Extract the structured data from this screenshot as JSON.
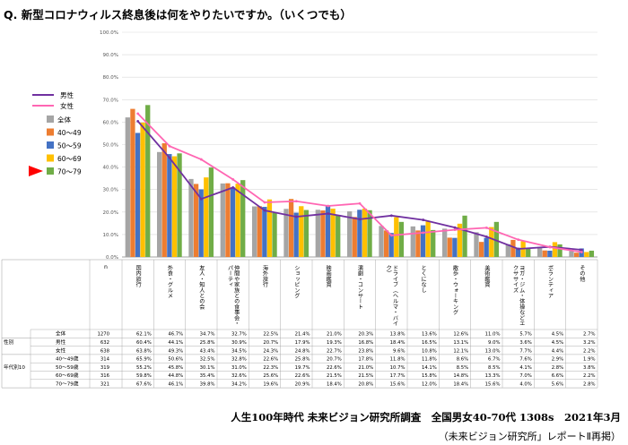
{
  "title": "Q. 新型コロナウィルス終息後は何をやりたいですか。（いくつでも）",
  "footer": {
    "main": "人生100年時代 未来ビジョン研究所調査　全国男女40-70代 1308s　2021年3月",
    "sub": "（未来ビジョン研究所」レポートⅡ再掲）"
  },
  "colors": {
    "all": "#a5a5a5",
    "age40": "#ed7d31",
    "age50": "#4472c4",
    "age60": "#ffc000",
    "age70": "#70ad47",
    "male_line": "#7030a0",
    "female_line": "#ff66b3",
    "arrow": "#ff0000"
  },
  "chart_data": {
    "type": "bar",
    "title": "Q. 新型コロナウィルス終息後は何をやりたいですか。（いくつでも）",
    "ylim": [
      0,
      100
    ],
    "yticks": [
      "0.0%",
      "10.0%",
      "20.0%",
      "30.0%",
      "40.0%",
      "50.0%",
      "60.0%",
      "70.0%",
      "80.0%",
      "90.0%",
      "100.0%"
    ],
    "grid": true,
    "legend_position": "left",
    "categories": [
      "国内旅行",
      "外食・グルメ",
      "友人・知人との会",
      "仲間や家族との食事会・パーティ",
      "海外旅行",
      "ショッピング",
      "映画鑑賞",
      "演劇・コンサート",
      "ドライブ（ヘルマ・バイク）",
      "とくになし",
      "散歩・ウォーキング",
      "美術鑑賞",
      "ヨガ・ジム・体操などエクササイズ",
      "ボランティア",
      "その他"
    ],
    "series": [
      {
        "name": "全体",
        "type": "bar",
        "values": [
          62.1,
          46.7,
          34.7,
          32.7,
          22.5,
          21.4,
          21.0,
          20.3,
          13.8,
          13.6,
          12.6,
          11.0,
          5.7,
          4.5,
          2.7
        ]
      },
      {
        "name": "40〜49",
        "type": "bar",
        "values": [
          65.9,
          50.6,
          32.5,
          32.8,
          22.6,
          25.8,
          20.7,
          17.8,
          11.8,
          11.8,
          8.6,
          6.7,
          7.6,
          2.9,
          1.9
        ]
      },
      {
        "name": "50〜59",
        "type": "bar",
        "values": [
          55.2,
          45.8,
          30.1,
          31.0,
          22.3,
          19.7,
          22.6,
          21.0,
          10.7,
          14.1,
          8.5,
          8.5,
          4.1,
          2.8,
          3.8
        ]
      },
      {
        "name": "60〜69",
        "type": "bar",
        "values": [
          59.8,
          44.8,
          35.4,
          32.6,
          25.6,
          22.6,
          21.5,
          21.5,
          17.7,
          15.8,
          14.8,
          13.3,
          7.0,
          6.6,
          2.2
        ]
      },
      {
        "name": "70〜79",
        "type": "bar",
        "values": [
          67.6,
          46.1,
          39.8,
          34.2,
          19.6,
          20.9,
          18.4,
          20.8,
          15.6,
          12.0,
          18.4,
          15.6,
          4.0,
          5.6,
          2.8
        ]
      },
      {
        "name": "男性",
        "type": "line",
        "values": [
          60.4,
          44.1,
          25.8,
          30.9,
          20.7,
          17.9,
          19.3,
          16.8,
          18.4,
          16.5,
          13.1,
          9.0,
          3.6,
          4.5,
          3.2
        ]
      },
      {
        "name": "女性",
        "type": "line",
        "values": [
          63.8,
          49.3,
          43.4,
          34.5,
          24.3,
          24.8,
          22.7,
          23.8,
          9.6,
          10.8,
          12.1,
          13.0,
          7.7,
          4.4,
          2.2
        ]
      }
    ],
    "table": {
      "header_first": "n",
      "rows": [
        {
          "group": "",
          "label": "全体",
          "n": "1270",
          "cells": [
            "62.1%",
            "46.7%",
            "34.7%",
            "32.7%",
            "22.5%",
            "21.4%",
            "21.0%",
            "20.3%",
            "13.8%",
            "13.6%",
            "12.6%",
            "11.0%",
            "5.7%",
            "4.5%",
            "2.7%"
          ]
        },
        {
          "group": "性別",
          "label": "男性",
          "n": "632",
          "cells": [
            "60.4%",
            "44.1%",
            "25.8%",
            "30.9%",
            "20.7%",
            "17.9%",
            "19.3%",
            "16.8%",
            "18.4%",
            "16.5%",
            "13.1%",
            "9.0%",
            "3.6%",
            "4.5%",
            "3.2%"
          ]
        },
        {
          "group": "",
          "label": "女性",
          "n": "638",
          "cells": [
            "63.8%",
            "49.3%",
            "43.4%",
            "34.5%",
            "24.3%",
            "24.8%",
            "22.7%",
            "23.8%",
            "9.6%",
            "10.8%",
            "12.1%",
            "13.0%",
            "7.7%",
            "4.4%",
            "2.2%"
          ]
        },
        {
          "group": "",
          "label": "40〜49歳",
          "n": "314",
          "cells": [
            "65.9%",
            "50.6%",
            "32.5%",
            "32.8%",
            "22.6%",
            "25.8%",
            "20.7%",
            "17.8%",
            "11.8%",
            "11.8%",
            "8.6%",
            "6.7%",
            "7.6%",
            "2.9%",
            "1.9%"
          ]
        },
        {
          "group": "年代別10",
          "label": "50〜59歳",
          "n": "319",
          "cells": [
            "55.2%",
            "45.8%",
            "30.1%",
            "31.0%",
            "22.3%",
            "19.7%",
            "22.6%",
            "21.0%",
            "10.7%",
            "14.1%",
            "8.5%",
            "8.5%",
            "4.1%",
            "2.8%",
            "3.8%"
          ]
        },
        {
          "group": "",
          "label": "60〜69歳",
          "n": "316",
          "cells": [
            "59.8%",
            "44.8%",
            "35.4%",
            "32.6%",
            "25.6%",
            "22.6%",
            "21.5%",
            "21.5%",
            "17.7%",
            "15.8%",
            "14.8%",
            "13.3%",
            "7.0%",
            "6.6%",
            "2.2%"
          ]
        },
        {
          "group": "",
          "label": "70〜79歳",
          "n": "321",
          "cells": [
            "67.6%",
            "46.1%",
            "39.8%",
            "34.2%",
            "19.6%",
            "20.9%",
            "18.4%",
            "20.8%",
            "15.6%",
            "12.0%",
            "18.4%",
            "15.6%",
            "4.0%",
            "5.6%",
            "2.8%"
          ]
        }
      ]
    }
  }
}
